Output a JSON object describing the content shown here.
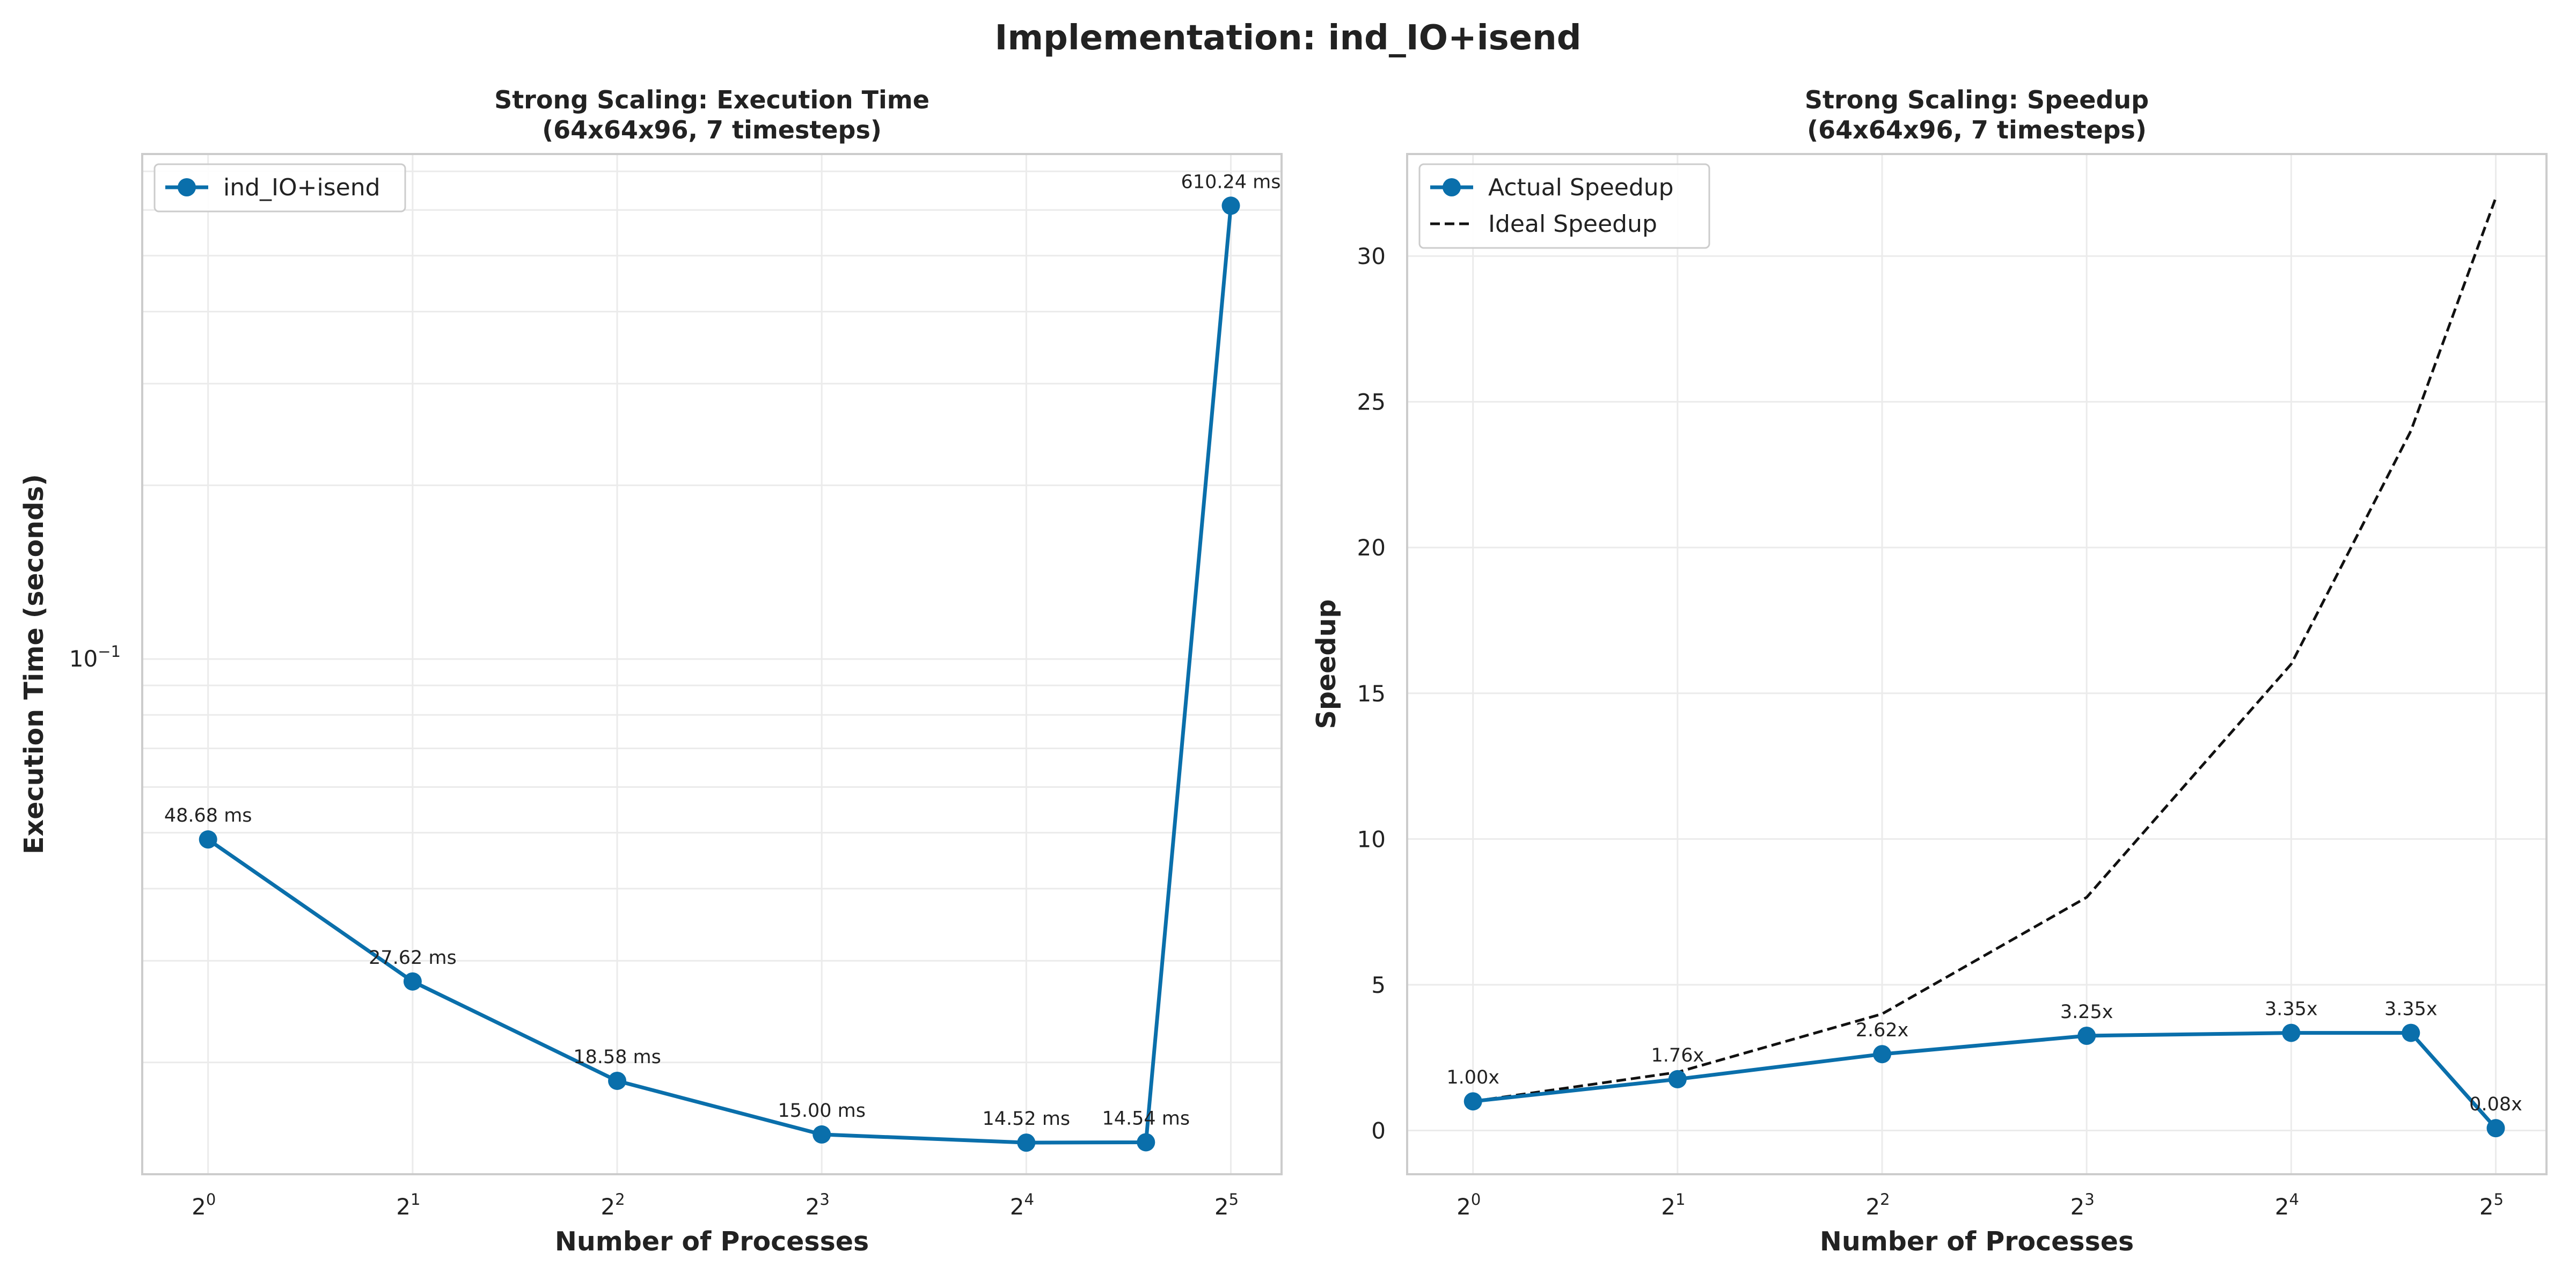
{
  "figure": {
    "title": "Implementation: ind_IO+isend"
  },
  "colors": {
    "actual": "#0a6fab",
    "ideal": "#111111",
    "grid": "#ebebeb",
    "frame": "#cccccc",
    "text": "#222222"
  },
  "chart_data": [
    {
      "type": "line",
      "title": "Strong Scaling: Execution Time",
      "subtitle": "(64x64x96, 7 timesteps)",
      "xlabel": "Number of Processes",
      "ylabel": "Execution Time (seconds)",
      "xscale": "log2",
      "yscale": "log10",
      "xlim": [
        0.8,
        38
      ],
      "ylim": [
        0.0128,
        0.75
      ],
      "xticks": [
        {
          "base": "2",
          "exp": "0",
          "value": 1
        },
        {
          "base": "2",
          "exp": "1",
          "value": 2
        },
        {
          "base": "2",
          "exp": "2",
          "value": 4
        },
        {
          "base": "2",
          "exp": "3",
          "value": 8
        },
        {
          "base": "2",
          "exp": "4",
          "value": 16
        },
        {
          "base": "2",
          "exp": "5",
          "value": 32
        }
      ],
      "yticks": [
        {
          "base": "10",
          "exp": "−1",
          "value": 0.1
        }
      ],
      "grid": true,
      "legend_position": "top-left",
      "series": [
        {
          "name": "ind_IO+isend",
          "color": "#0a6fab",
          "marker": "circle",
          "x": [
            1,
            2,
            4,
            8,
            16,
            24,
            32
          ],
          "y": [
            0.04868,
            0.02762,
            0.01858,
            0.015,
            0.01452,
            0.01454,
            0.61024
          ],
          "labels": [
            "48.68 ms",
            "27.62 ms",
            "18.58 ms",
            "15.00 ms",
            "14.52 ms",
            "14.54 ms",
            "610.24 ms"
          ]
        }
      ]
    },
    {
      "type": "line",
      "title": "Strong Scaling: Speedup",
      "subtitle": "(64x64x96, 7 timesteps)",
      "xlabel": "Number of Processes",
      "ylabel": "Speedup",
      "xscale": "log2",
      "yscale": "linear",
      "xlim": [
        0.8,
        38
      ],
      "ylim": [
        -1.5,
        33.5
      ],
      "xticks": [
        {
          "base": "2",
          "exp": "0",
          "value": 1
        },
        {
          "base": "2",
          "exp": "1",
          "value": 2
        },
        {
          "base": "2",
          "exp": "2",
          "value": 4
        },
        {
          "base": "2",
          "exp": "3",
          "value": 8
        },
        {
          "base": "2",
          "exp": "4",
          "value": 16
        },
        {
          "base": "2",
          "exp": "5",
          "value": 32
        }
      ],
      "yticks": [
        {
          "label": "0",
          "value": 0
        },
        {
          "label": "5",
          "value": 5
        },
        {
          "label": "10",
          "value": 10
        },
        {
          "label": "15",
          "value": 15
        },
        {
          "label": "20",
          "value": 20
        },
        {
          "label": "25",
          "value": 25
        },
        {
          "label": "30",
          "value": 30
        }
      ],
      "grid": true,
      "legend_position": "top-left",
      "series": [
        {
          "name": "Actual Speedup",
          "color": "#0a6fab",
          "marker": "circle",
          "style": "solid",
          "x": [
            1,
            2,
            4,
            8,
            16,
            24,
            32
          ],
          "y": [
            1.0,
            1.76,
            2.62,
            3.25,
            3.35,
            3.35,
            0.08
          ],
          "labels": [
            "1.00x",
            "1.76x",
            "2.62x",
            "3.25x",
            "3.35x",
            "3.35x",
            "0.08x"
          ]
        },
        {
          "name": "Ideal Speedup",
          "color": "#111111",
          "marker": "none",
          "style": "dashed",
          "x": [
            1,
            2,
            4,
            8,
            16,
            24,
            32
          ],
          "y": [
            1,
            2,
            4,
            8,
            16,
            24,
            32
          ]
        }
      ]
    }
  ]
}
